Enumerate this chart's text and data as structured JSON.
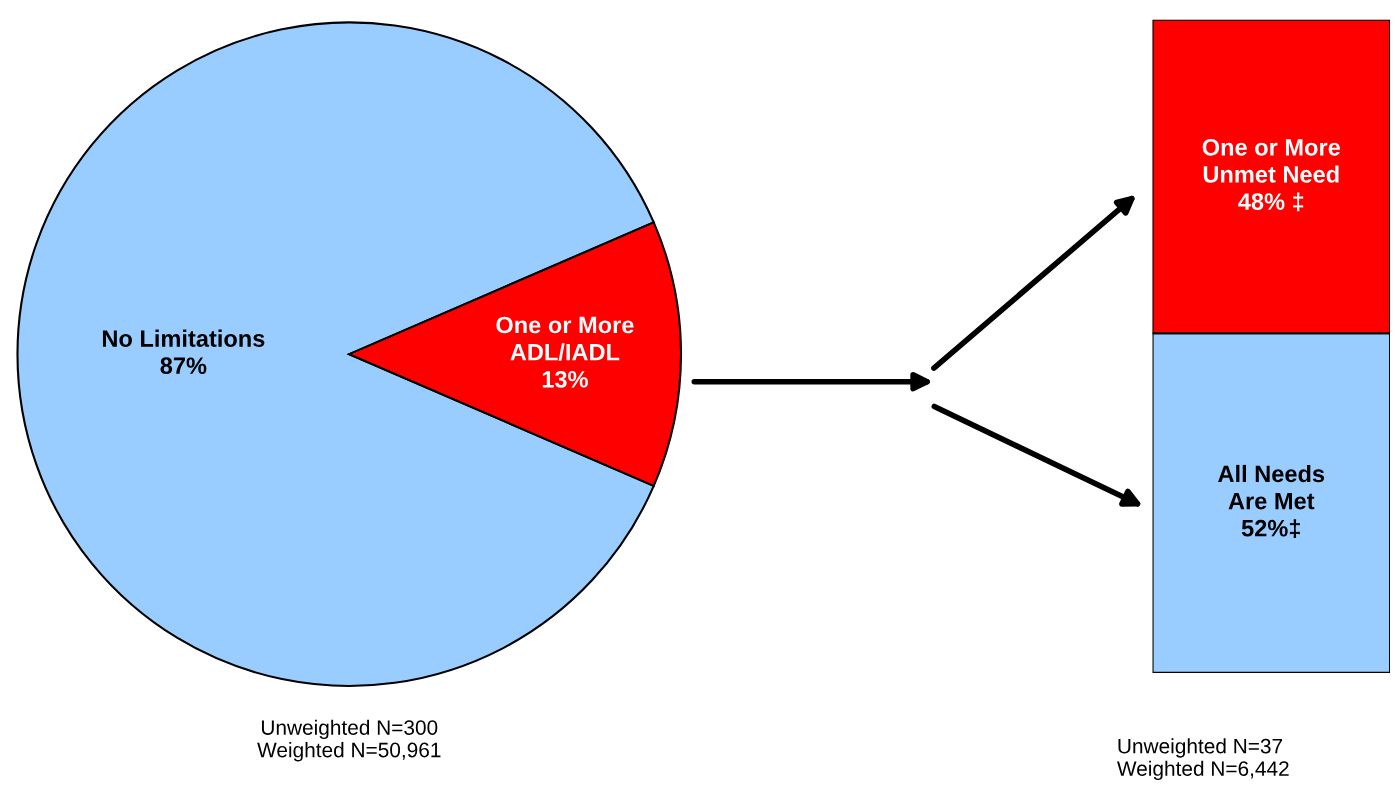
{
  "chart_data": [
    {
      "type": "pie",
      "categories": [
        "No Limitations",
        "One or More\nADL/IADL"
      ],
      "values": [
        87,
        13
      ],
      "colors": [
        "#99ccff",
        "#ff0000"
      ],
      "value_labels": [
        "87%",
        "13%"
      ],
      "annotations": [
        "Unweighted N=300\nWeighted N=50,961"
      ]
    },
    {
      "type": "bar",
      "stacked": true,
      "categories": [
        null
      ],
      "ylim": [
        0,
        100
      ],
      "series": [
        {
          "name": "All Needs\nAre Met",
          "color": "#99ccff",
          "values": [
            52
          ],
          "value_labels": [
            "52%‡"
          ]
        },
        {
          "name": "One or More\nUnmet Need",
          "color": "#ff0000",
          "values": [
            48
          ],
          "value_labels": [
            "48% ‡"
          ]
        }
      ],
      "annotations": [
        "Unweighted N=37\nWeighted N=6,442"
      ]
    }
  ]
}
